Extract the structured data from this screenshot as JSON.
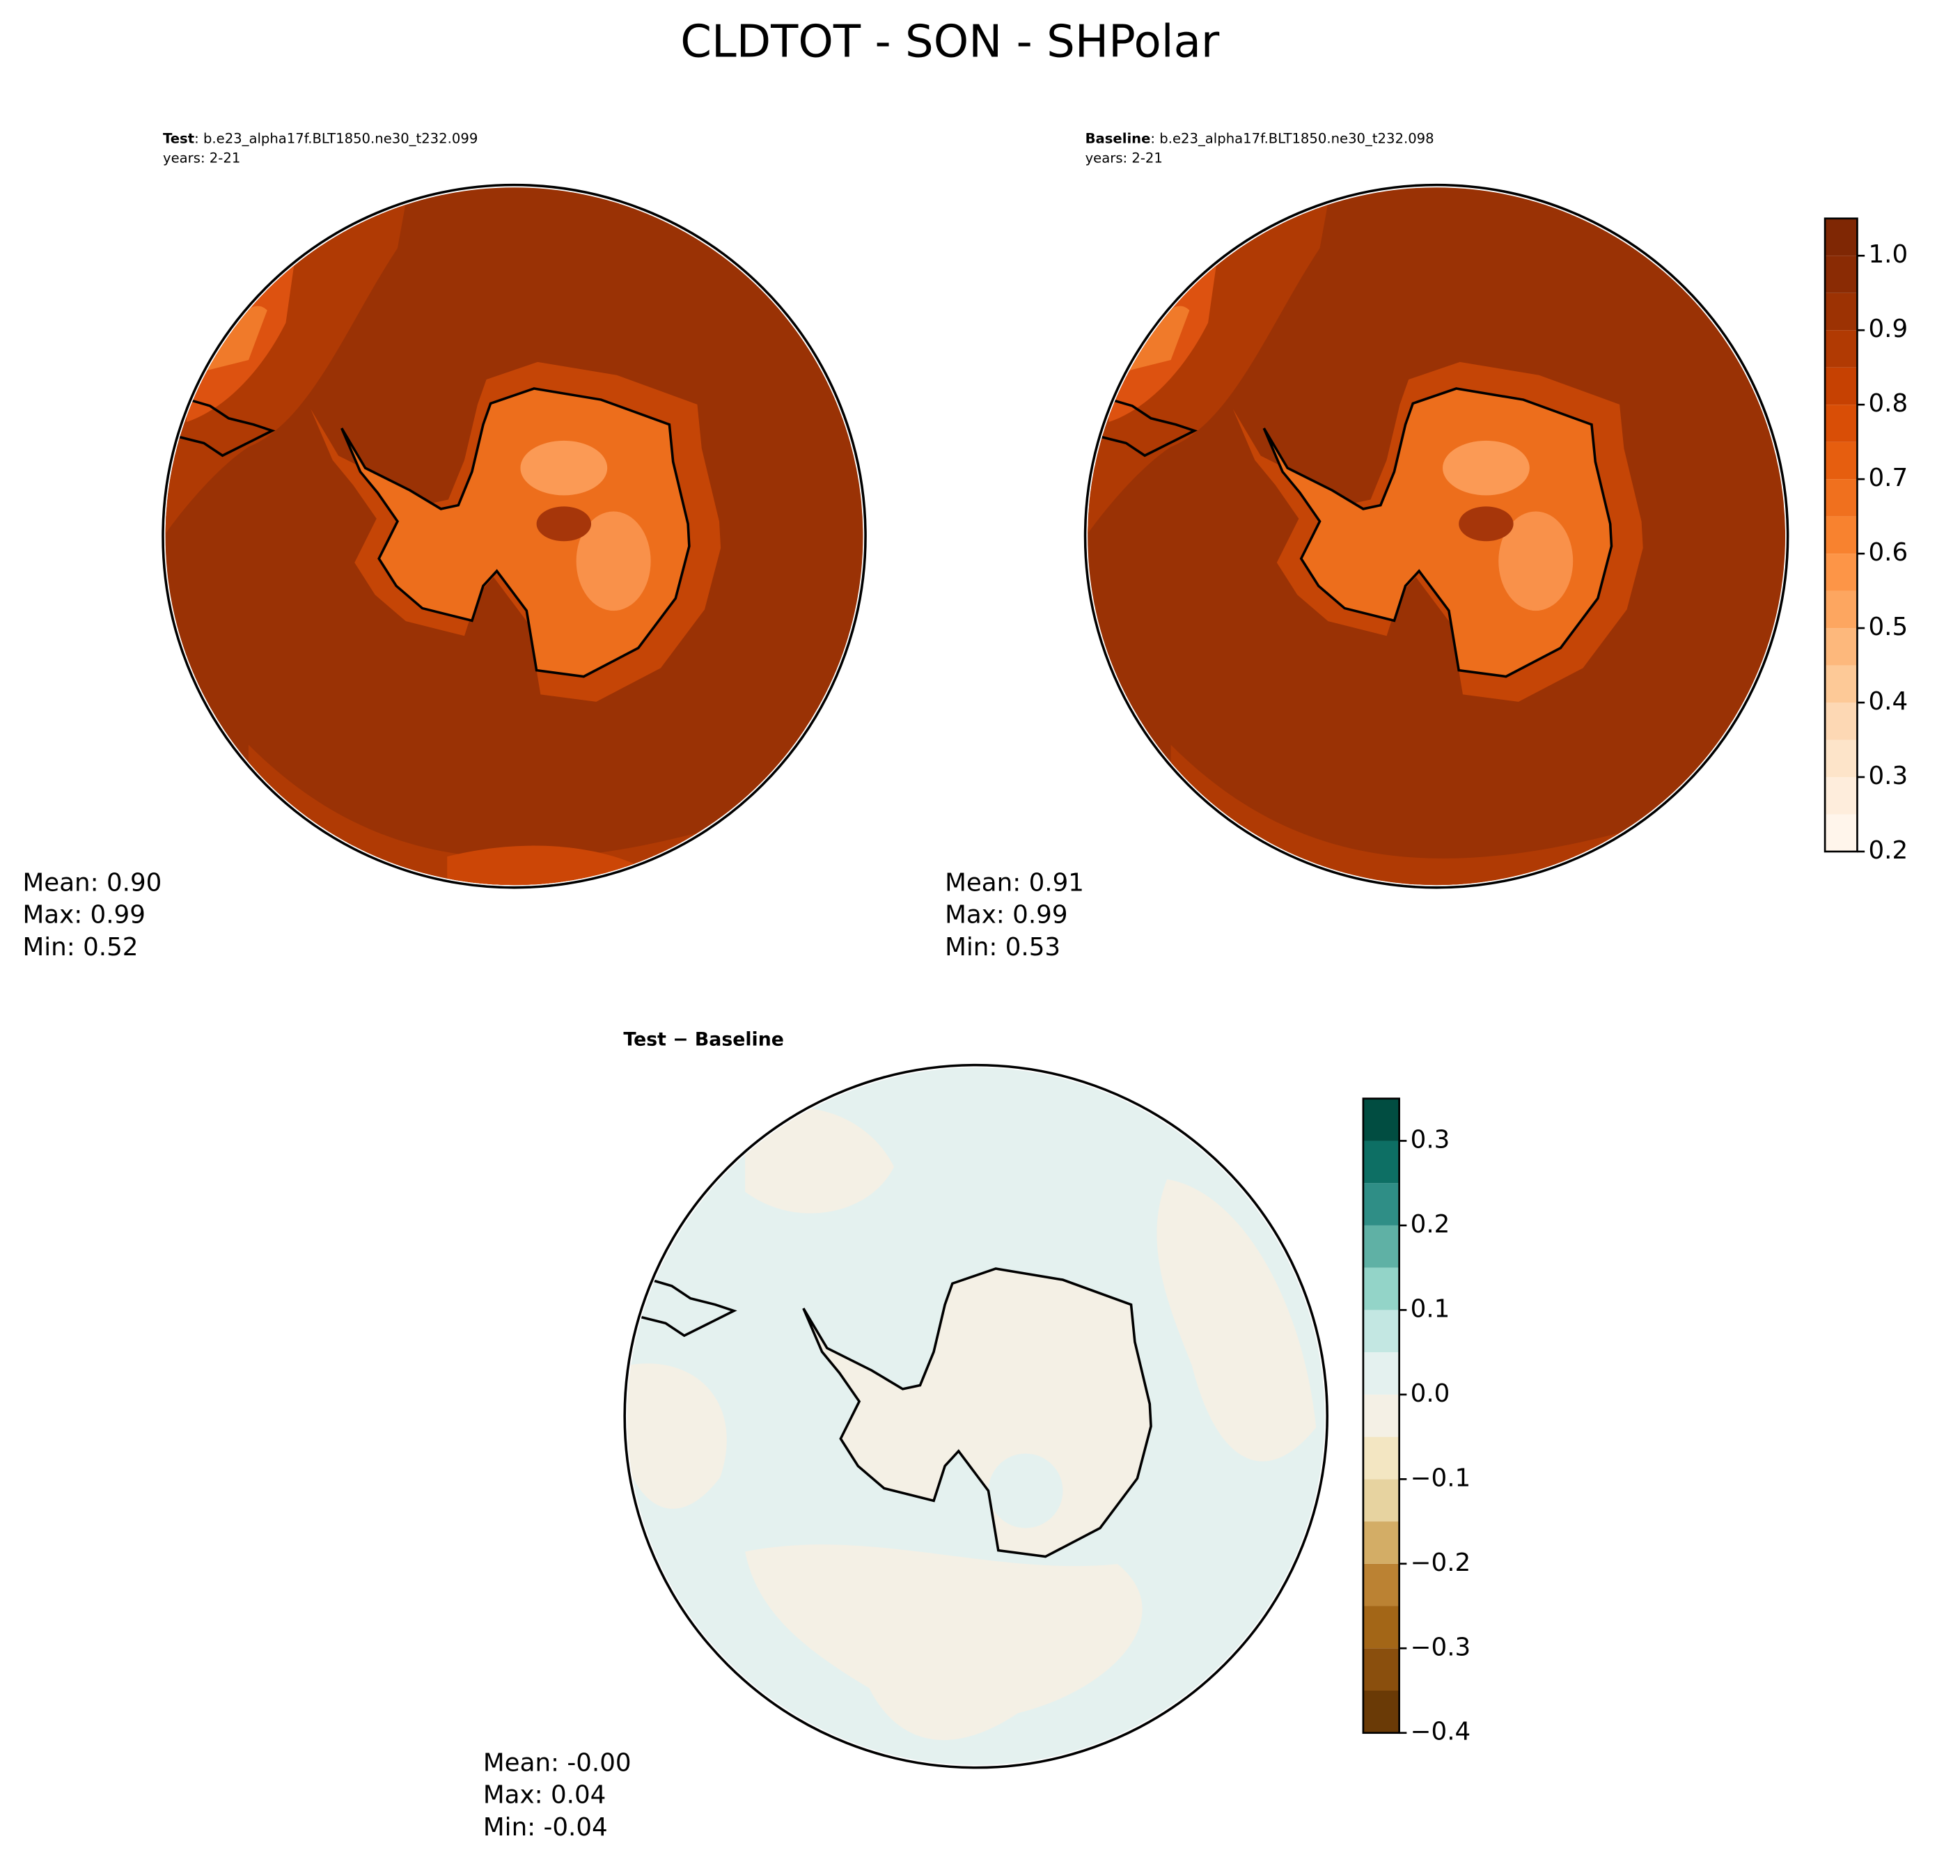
{
  "figure": {
    "title": "CLDTOT - SON - SHPolar",
    "panels": [
      {
        "title_bold": "Test",
        "title_rest": ": b.e23_alpha17f.BLT1850.ne30_t232.099",
        "years": "years: 2-21",
        "stats": [
          "Mean:  0.90",
          "Max:  0.99",
          "Min:  0.52"
        ]
      },
      {
        "title_bold": "Baseline",
        "title_rest": ": b.e23_alpha17f.BLT1850.ne30_t232.098",
        "years": "years: 2-21",
        "stats": [
          "Mean:  0.91",
          "Max:  0.99",
          "Min:  0.53"
        ]
      },
      {
        "title_bold": "Test − Baseline",
        "stats": [
          "Mean: -0.00",
          "Max:  0.04",
          "Min: -0.04"
        ]
      }
    ]
  },
  "chart_data": [
    {
      "type": "colorbar",
      "ylim": [
        0.2,
        1.05
      ],
      "levels": [
        0.2,
        0.25,
        0.3,
        0.35,
        0.4,
        0.45,
        0.5,
        0.55,
        0.6,
        0.65,
        0.7,
        0.75,
        0.8,
        0.85,
        0.9,
        0.95,
        1.0,
        1.05
      ],
      "colors": [
        "#fff5eb",
        "#feeddc",
        "#fde4c9",
        "#fdd8b4",
        "#fdc997",
        "#fdb87c",
        "#fda660",
        "#fd9547",
        "#f8822f",
        "#f0701e",
        "#e65e0f",
        "#d94e06",
        "#c64102",
        "#b13a03",
        "#9c3203",
        "#8a2b04",
        "#7f2704"
      ],
      "yticks": [
        0.2,
        0.3,
        0.4,
        0.5,
        0.6,
        0.7,
        0.8,
        0.9,
        {
          "value": 1,
          "label": "1.0"
        }
      ]
    },
    {
      "type": "colorbar",
      "ylim": [
        -0.4,
        0.35
      ],
      "levels": [
        -0.4,
        -0.35,
        -0.3,
        -0.25,
        -0.2,
        -0.15,
        -0.1,
        -0.05,
        0,
        0.05,
        0.1,
        0.15,
        0.2,
        0.25,
        0.3,
        0.35
      ],
      "colors": [
        "#6a3a06",
        "#8a4f0d",
        "#a36617",
        "#bb8233",
        "#d3ad66",
        "#e7d3a0",
        "#f3e6c2",
        "#f4f0e5",
        "#e4f1ef",
        "#c3e7e2",
        "#93d4c8",
        "#5fb1a5",
        "#2f8e86",
        "#0d6f64",
        "#014d41"
      ],
      "yticks": [
        {
          "value": -0.4,
          "label": "−0.4"
        },
        {
          "value": -0.3,
          "label": "−0.3"
        },
        {
          "value": -0.2,
          "label": "−0.2"
        },
        {
          "value": -0.1,
          "label": "−0.1"
        },
        {
          "value": 0,
          "label": "0.0"
        },
        0.1,
        0.2,
        0.3
      ]
    }
  ]
}
